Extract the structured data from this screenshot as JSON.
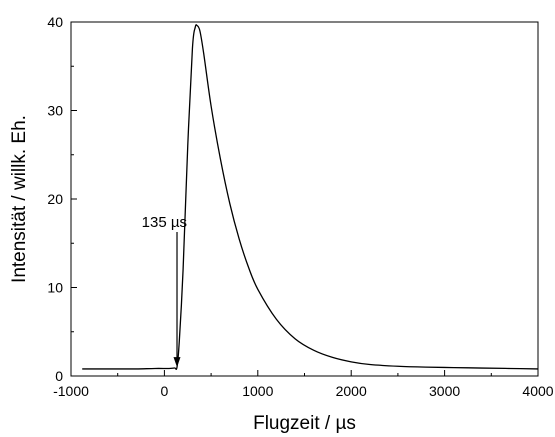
{
  "chart_data": {
    "type": "line",
    "xlabel": "Flugzeit / µs",
    "ylabel": "Intensität / willk. Eh.",
    "xlim": [
      -1000,
      4000
    ],
    "ylim": [
      0,
      40
    ],
    "xticks": [
      -1000,
      0,
      1000,
      2000,
      3000,
      4000
    ],
    "yticks": [
      0,
      10,
      20,
      30,
      40
    ],
    "xtick_labels": [
      "-1000",
      "0",
      "1000",
      "2000",
      "3000",
      "4000"
    ],
    "ytick_labels": [
      "0",
      "10",
      "20",
      "30",
      "40"
    ],
    "grid": false,
    "legend": "none",
    "series": [
      {
        "color": "#000000",
        "x": [
          -880,
          -700,
          -500,
          -300,
          -100,
          50,
          110,
          135,
          160,
          200,
          250,
          300,
          330,
          350,
          380,
          420,
          500,
          600,
          700,
          800,
          900,
          1000,
          1200,
          1400,
          1600,
          1800,
          2000,
          2200,
          2500,
          2800,
          3100,
          3400,
          3700,
          4000
        ],
        "y": [
          0.8,
          0.8,
          0.8,
          0.8,
          0.85,
          0.85,
          0.9,
          1.0,
          4.0,
          12.0,
          26.0,
          37.0,
          39.4,
          39.6,
          39.0,
          36.5,
          30.5,
          24.5,
          19.5,
          15.5,
          12.3,
          9.8,
          6.4,
          4.2,
          2.9,
          2.1,
          1.6,
          1.3,
          1.1,
          1.0,
          0.95,
          0.9,
          0.85,
          0.8
        ]
      }
    ],
    "annotations": [
      {
        "text": "135 µs",
        "x": 135,
        "y": 1.0,
        "kind": "down-arrow"
      }
    ]
  }
}
